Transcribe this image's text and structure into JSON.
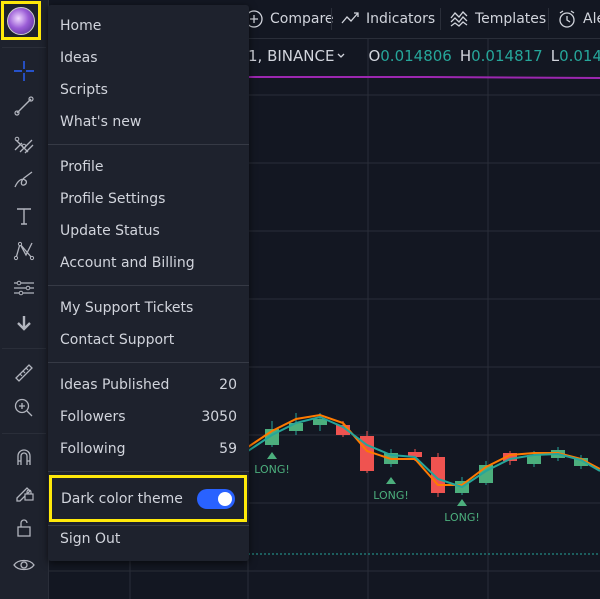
{
  "toolbar": {
    "tools": [
      "crosshair-icon",
      "trend-line-icon",
      "pitchfork-icon",
      "brush-icon",
      "text-icon",
      "pattern-icon",
      "measure-range-icon",
      "arrow-down-icon",
      "ruler-icon",
      "zoom-icon",
      "magnet-icon",
      "lock-pencil-icon",
      "unlock-icon",
      "eye-icon"
    ]
  },
  "topbar": {
    "compare": "Compare",
    "indicators": "Indicators",
    "templates": "Templates",
    "alert": "Ale"
  },
  "legend": {
    "symbol": "1, BINANCE",
    "o_label": "O",
    "o_value": "0.014806",
    "h_label": "H",
    "h_value": "0.014817",
    "l_label": "L",
    "l_value": "0.014"
  },
  "chart": {
    "signal_label": "LONG!",
    "colors": {
      "up": "#26a69a",
      "up_fill": "#4caf7d",
      "down": "#ef5350",
      "line_orange": "#ff7a00",
      "line_teal": "#26a69a",
      "purple": "#9c27b0",
      "grid": "#2a2e39"
    }
  },
  "menu": {
    "items_1": [
      "Home",
      "Ideas",
      "Scripts",
      "What's new"
    ],
    "items_2": [
      "Profile",
      "Profile Settings",
      "Update Status",
      "Account and Billing"
    ],
    "items_3": [
      "My Support Tickets",
      "Contact Support"
    ],
    "stats": [
      {
        "label": "Ideas Published",
        "value": "20"
      },
      {
        "label": "Followers",
        "value": "3050"
      },
      {
        "label": "Following",
        "value": "59"
      }
    ],
    "dark_theme_label": "Dark color theme",
    "dark_theme_on": true,
    "sign_out": "Sign Out"
  }
}
